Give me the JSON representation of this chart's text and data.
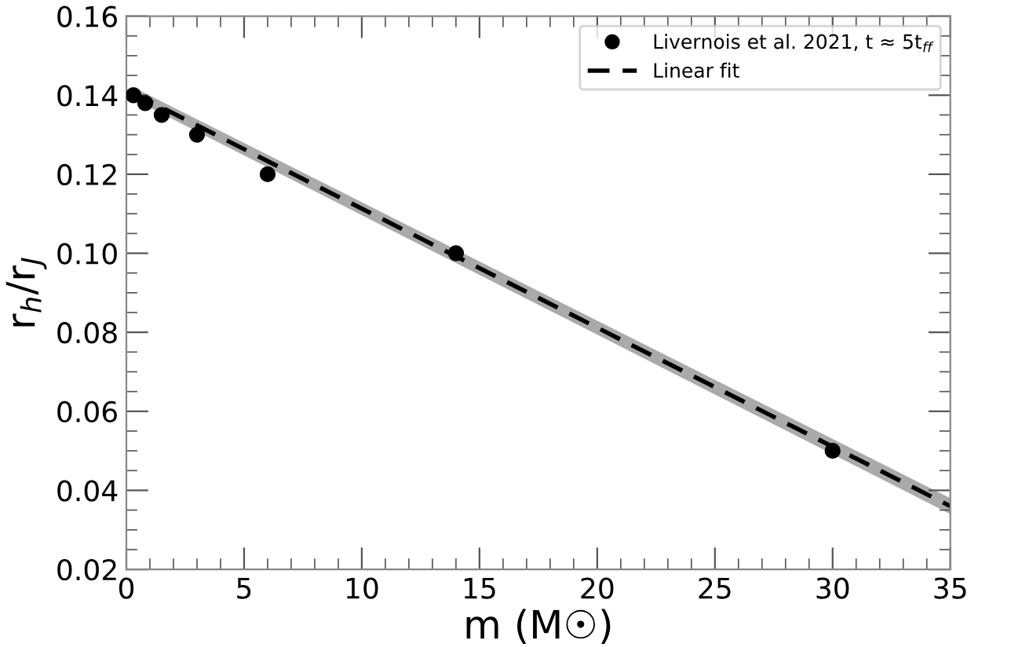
{
  "chart_data": {
    "type": "scatter",
    "xlabel": "m (M☉)",
    "ylabel": "r$_{h}$/r$_{J}$",
    "xlim": [
      0,
      35
    ],
    "xticks": [
      0,
      5,
      10,
      15,
      20,
      25,
      30,
      35
    ],
    "ylim": [
      0.02,
      0.16
    ],
    "yticks": [
      {
        "value": 0.02,
        "label": "0.02"
      },
      {
        "value": 0.04,
        "label": "0.04"
      },
      {
        "value": 0.06,
        "label": "0.06"
      },
      {
        "value": 0.08,
        "label": "0.08"
      },
      {
        "value": 0.1,
        "label": "0.10"
      },
      {
        "value": 0.12,
        "label": "0.12"
      },
      {
        "value": 0.14,
        "label": "0.14"
      },
      {
        "value": 0.16,
        "label": "0.16"
      }
    ],
    "grid": false,
    "legend": "top right",
    "series": [
      {
        "name": "Livernois et al. 2021, t ≈ 5t$_{ff}$",
        "marker": "circle",
        "color": "#000000",
        "x": [
          0.3,
          0.8,
          1.5,
          3,
          6,
          14,
          30
        ],
        "values": [
          0.14,
          0.138,
          0.135,
          0.13,
          0.12,
          0.1,
          0.05
        ]
      },
      {
        "name": "Linear fit",
        "type": "line",
        "line_style": "dashed",
        "color": "#000000",
        "x": [
          0.3,
          35
        ],
        "values": [
          0.1405,
          0.036
        ],
        "lower": [
          0.139,
          0.034
        ],
        "upper": [
          0.142,
          0.038
        ]
      }
    ]
  }
}
